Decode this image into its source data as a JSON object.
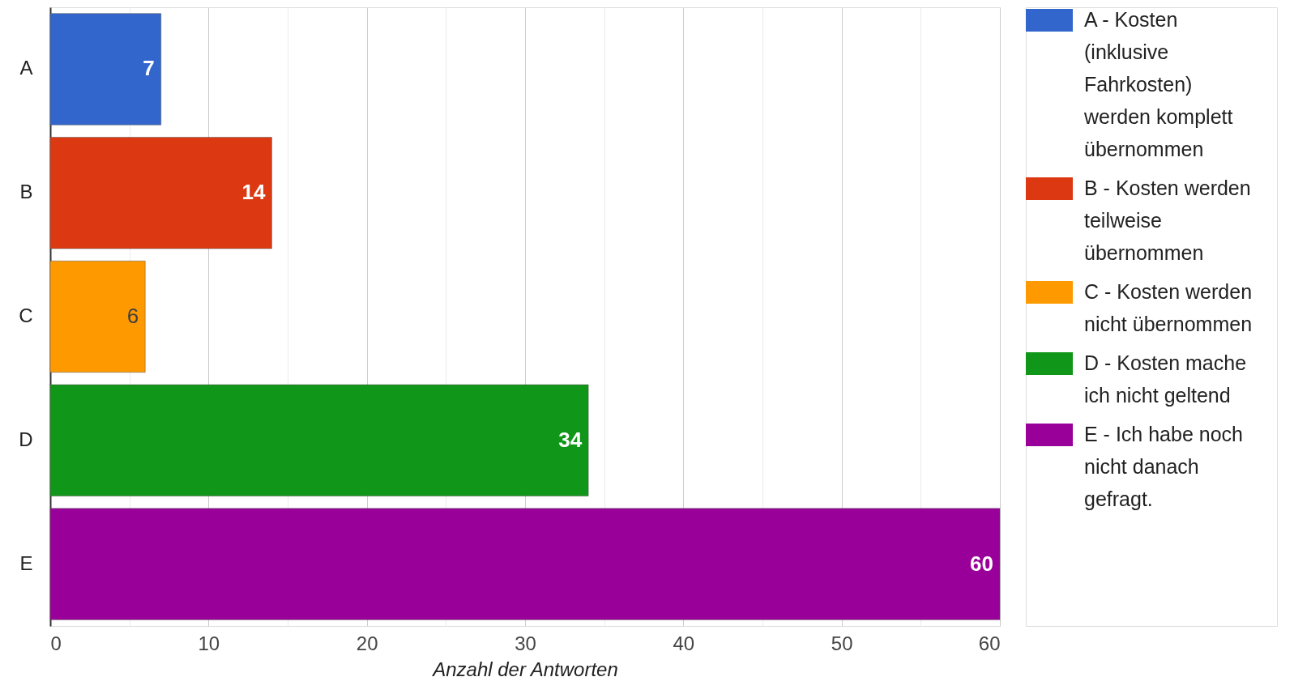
{
  "chart_data": {
    "type": "bar",
    "orientation": "horizontal",
    "xlabel": "Anzahl der Antworten",
    "categories": [
      "A",
      "B",
      "C",
      "D",
      "E"
    ],
    "series": [
      {
        "name": "A - Kosten (inklusive Fahrkosten) werden komplett übernommen",
        "color": "#3366cc",
        "values": [
          7,
          null,
          null,
          null,
          null
        ]
      },
      {
        "name": "B - Kosten werden teilweise übernommen",
        "color": "#dc3912",
        "values": [
          null,
          14,
          null,
          null,
          null
        ]
      },
      {
        "name": "C - Kosten werden nicht übernommen",
        "color": "#ff9900",
        "values": [
          null,
          null,
          6,
          null,
          null
        ]
      },
      {
        "name": "D - Kosten mache ich nicht geltend",
        "color": "#109618",
        "values": [
          null,
          null,
          null,
          34,
          null
        ]
      },
      {
        "name": "E - Ich habe noch nicht danach gefragt.",
        "color": "#990099",
        "values": [
          null,
          null,
          null,
          null,
          60
        ]
      }
    ],
    "xlim": [
      0,
      60
    ],
    "xticks": [
      0,
      {
        "value": 5,
        "label": null
      },
      10,
      {
        "value": 15,
        "label": null
      },
      20,
      {
        "value": 25,
        "label": null
      },
      30,
      {
        "value": 35,
        "label": null
      },
      40,
      {
        "value": 45,
        "label": null
      },
      50,
      {
        "value": 55,
        "label": null
      },
      60
    ],
    "grid": "x",
    "data_labels": true,
    "legend": "top right"
  }
}
